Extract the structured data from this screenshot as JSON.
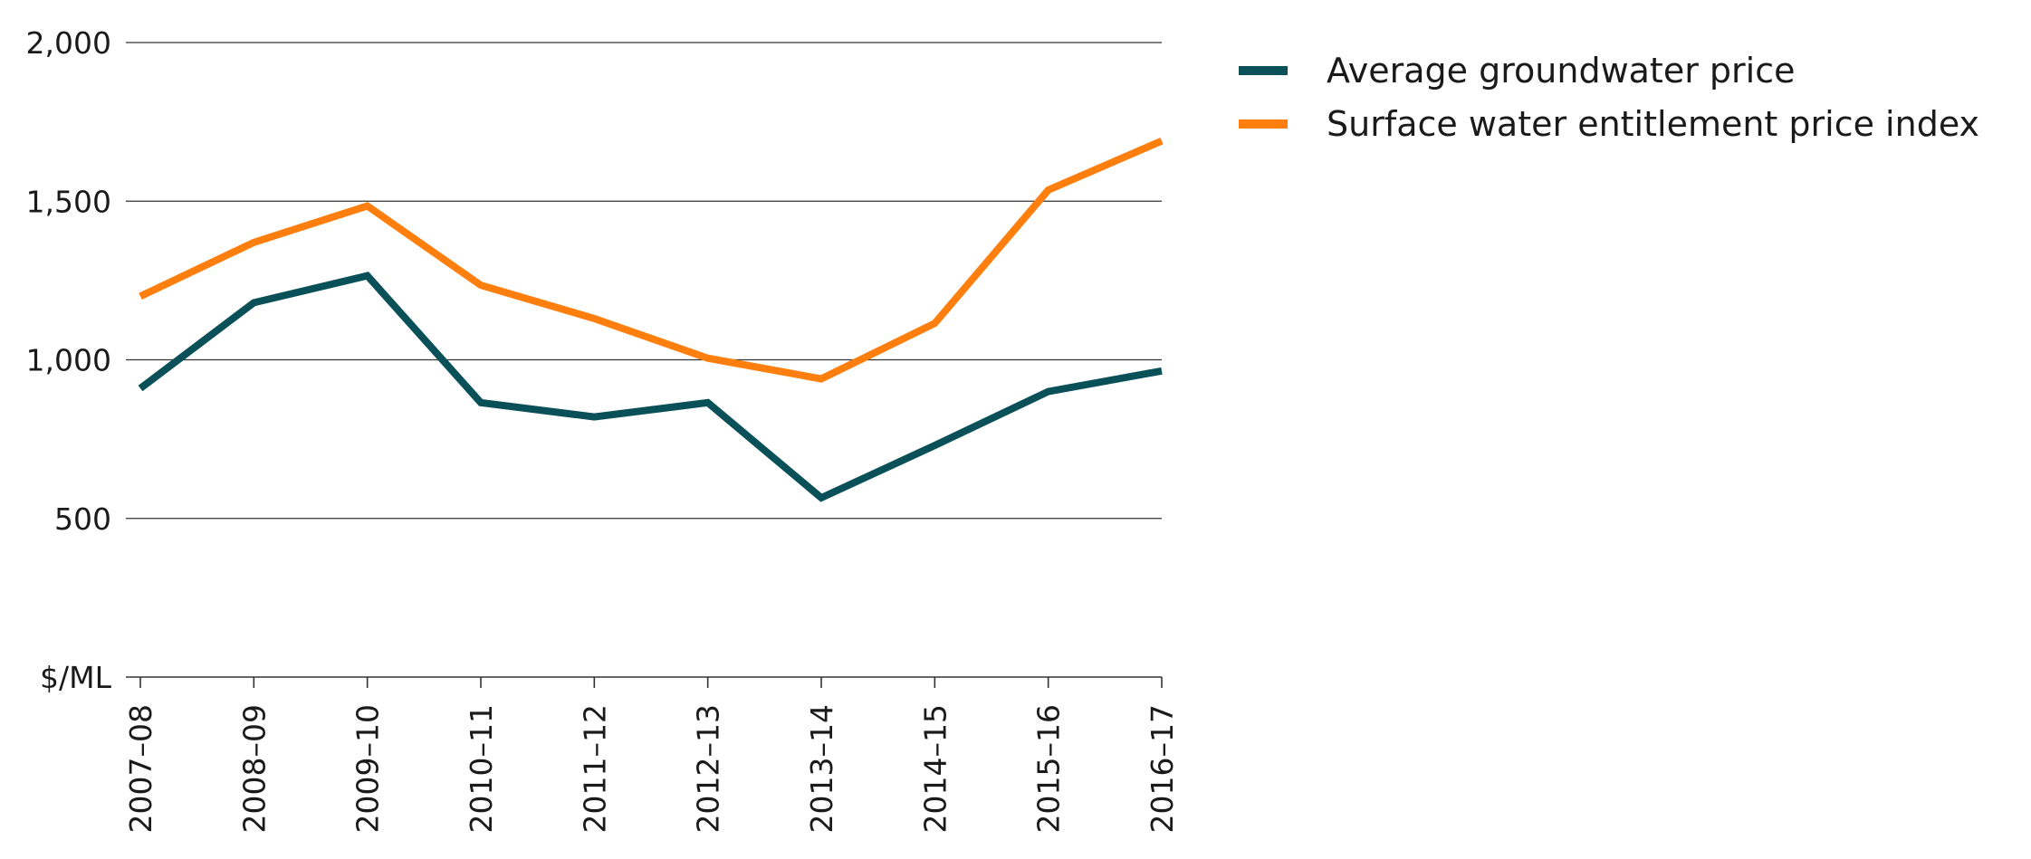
{
  "chart_data": {
    "type": "line",
    "categories": [
      "2007–08",
      "2008–09",
      "2009–10",
      "2010–11",
      "2011–12",
      "2012–13",
      "2013–14",
      "2014–15",
      "2015–16",
      "2016–17"
    ],
    "series": [
      {
        "name": "Average groundwater price",
        "color": "#0a5059",
        "values": [
          910,
          1180,
          1265,
          865,
          820,
          865,
          565,
          730,
          900,
          965
        ]
      },
      {
        "name": "Surface water entitlement price index",
        "color": "#ff7f0e",
        "values": [
          1200,
          1370,
          1485,
          1235,
          1130,
          1005,
          940,
          1115,
          1535,
          1690
        ]
      }
    ],
    "ylim": [
      0,
      2000
    ],
    "yticks": [
      {
        "value": 500,
        "label": "500"
      },
      {
        "value": 1000,
        "label": "1,000"
      },
      {
        "value": 1500,
        "label": "1,500"
      },
      {
        "value": 2000,
        "label": "2,000"
      }
    ],
    "ylabel": "$/ML",
    "grid": true,
    "legend_position": "top-right"
  }
}
